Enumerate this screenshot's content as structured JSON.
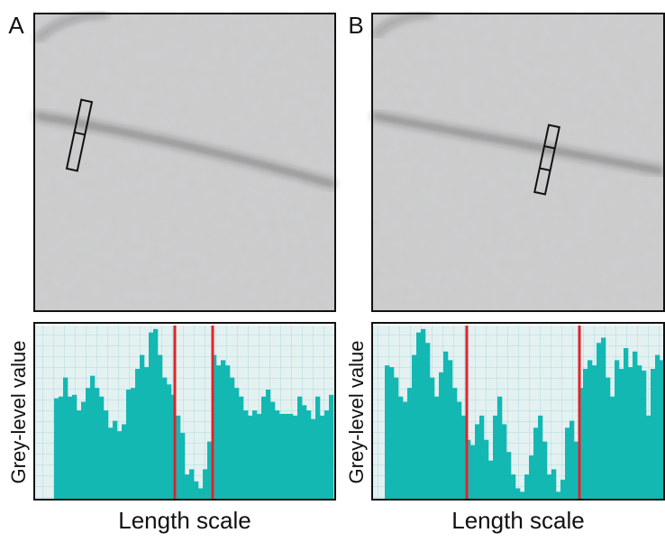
{
  "chart_data": [
    {
      "type": "bar",
      "panel_label": "A",
      "y_label": "Grey-level value",
      "x_label": "Length scale",
      "color": "#14b8b3",
      "marker_color": "#e3232b",
      "ylim": [
        0,
        100
      ],
      "values": [
        58,
        59,
        70,
        59,
        60,
        51,
        56,
        64,
        71,
        64,
        59,
        51,
        41,
        45,
        39,
        43,
        63,
        64,
        75,
        83,
        76,
        96,
        98,
        83,
        70,
        66,
        60,
        48,
        38,
        14,
        17,
        10,
        6,
        17,
        33,
        83,
        77,
        80,
        77,
        70,
        64,
        59,
        51,
        48,
        51,
        49,
        59,
        63,
        56,
        51,
        49,
        49,
        49,
        48,
        59,
        54,
        51,
        46,
        59,
        48,
        51,
        60
      ],
      "markers": [
        26.8,
        35.2
      ]
    },
    {
      "type": "bar",
      "panel_label": "B",
      "y_label": "Grey-level value",
      "x_label": "Length scale",
      "color": "#14b8b3",
      "marker_color": "#e3232b",
      "ylim": [
        0,
        100
      ],
      "values": [
        77,
        76,
        70,
        59,
        56,
        64,
        83,
        96,
        98,
        90,
        70,
        59,
        73,
        85,
        80,
        64,
        56,
        48,
        34,
        31,
        43,
        48,
        34,
        22,
        48,
        59,
        43,
        27,
        14,
        6,
        4,
        14,
        25,
        41,
        48,
        33,
        14,
        17,
        4,
        11,
        41,
        45,
        33,
        64,
        75,
        80,
        77,
        90,
        93,
        70,
        59,
        80,
        75,
        87,
        76,
        85,
        77,
        74,
        48,
        75,
        83,
        80
      ],
      "markers": [
        18.2,
        43.2
      ]
    }
  ]
}
